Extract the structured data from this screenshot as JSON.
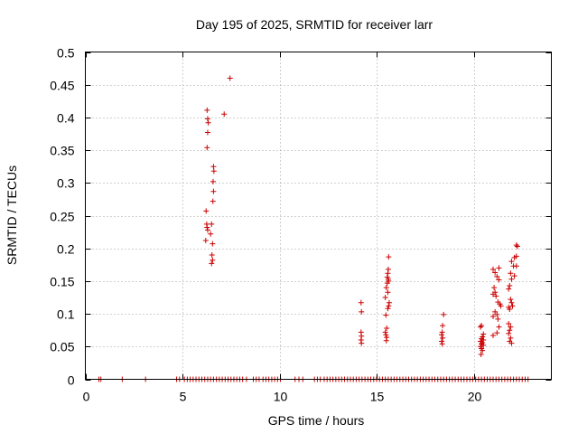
{
  "chart_data": {
    "type": "scatter",
    "title": "Day 195 of 2025, SRMTID for receiver larr",
    "xlabel": "GPS time / hours",
    "ylabel": "SRMTID / TECUs",
    "xlim": [
      0,
      24
    ],
    "ylim": [
      0,
      0.5
    ],
    "xticks": [
      0,
      5,
      10,
      15,
      20
    ],
    "xtick_labels": [
      "0",
      "5",
      "10",
      "15",
      "20"
    ],
    "yticks": [
      0,
      0.05,
      0.1,
      0.15,
      0.2,
      0.25,
      0.3,
      0.35,
      0.4,
      0.45,
      0.5
    ],
    "ytick_labels": [
      "0",
      "0.05",
      "0.1",
      "0.15",
      "0.2",
      "0.25",
      "0.3",
      "0.35",
      "0.4",
      "0.45",
      "0.5"
    ],
    "grid": true,
    "marker": "+",
    "color": "#cc0000",
    "series": [
      {
        "name": "SRMTID",
        "points": [
          [
            6.27,
            0.411
          ],
          [
            6.3,
            0.398
          ],
          [
            6.33,
            0.392
          ],
          [
            6.3,
            0.377
          ],
          [
            6.27,
            0.354
          ],
          [
            7.45,
            0.46
          ],
          [
            7.15,
            0.405
          ],
          [
            6.6,
            0.325
          ],
          [
            6.62,
            0.318
          ],
          [
            6.58,
            0.302
          ],
          [
            6.6,
            0.287
          ],
          [
            6.57,
            0.272
          ],
          [
            6.22,
            0.257
          ],
          [
            6.5,
            0.237
          ],
          [
            6.25,
            0.237
          ],
          [
            6.27,
            0.232
          ],
          [
            6.3,
            0.228
          ],
          [
            6.45,
            0.222
          ],
          [
            6.2,
            0.212
          ],
          [
            6.55,
            0.207
          ],
          [
            6.52,
            0.19
          ],
          [
            6.55,
            0.182
          ],
          [
            6.5,
            0.177
          ],
          [
            14.2,
            0.117
          ],
          [
            14.22,
            0.103
          ],
          [
            14.2,
            0.072
          ],
          [
            14.22,
            0.066
          ],
          [
            14.2,
            0.06
          ],
          [
            14.22,
            0.055
          ],
          [
            15.62,
            0.187
          ],
          [
            15.6,
            0.168
          ],
          [
            15.58,
            0.162
          ],
          [
            15.55,
            0.156
          ],
          [
            15.6,
            0.153
          ],
          [
            15.62,
            0.15
          ],
          [
            15.55,
            0.147
          ],
          [
            15.5,
            0.14
          ],
          [
            15.58,
            0.133
          ],
          [
            15.45,
            0.125
          ],
          [
            15.65,
            0.117
          ],
          [
            15.62,
            0.112
          ],
          [
            15.58,
            0.108
          ],
          [
            15.48,
            0.098
          ],
          [
            15.52,
            0.078
          ],
          [
            15.45,
            0.072
          ],
          [
            15.48,
            0.068
          ],
          [
            15.52,
            0.064
          ],
          [
            15.5,
            0.059
          ],
          [
            18.45,
            0.099
          ],
          [
            18.4,
            0.082
          ],
          [
            18.38,
            0.072
          ],
          [
            18.35,
            0.068
          ],
          [
            18.4,
            0.063
          ],
          [
            18.35,
            0.058
          ],
          [
            18.38,
            0.054
          ],
          [
            20.4,
            0.082
          ],
          [
            20.35,
            0.08
          ],
          [
            20.5,
            0.069
          ],
          [
            20.45,
            0.065
          ],
          [
            20.4,
            0.062
          ],
          [
            20.5,
            0.06
          ],
          [
            20.35,
            0.058
          ],
          [
            20.45,
            0.056
          ],
          [
            20.4,
            0.054
          ],
          [
            20.5,
            0.052
          ],
          [
            20.35,
            0.05
          ],
          [
            20.4,
            0.047
          ],
          [
            20.45,
            0.044
          ],
          [
            20.38,
            0.038
          ],
          [
            21.0,
            0.168
          ],
          [
            21.3,
            0.17
          ],
          [
            21.1,
            0.163
          ],
          [
            21.2,
            0.157
          ],
          [
            21.3,
            0.152
          ],
          [
            21.05,
            0.14
          ],
          [
            21.1,
            0.133
          ],
          [
            21.0,
            0.13
          ],
          [
            21.15,
            0.127
          ],
          [
            21.25,
            0.118
          ],
          [
            21.35,
            0.115
          ],
          [
            21.4,
            0.112
          ],
          [
            21.1,
            0.103
          ],
          [
            21.2,
            0.099
          ],
          [
            21.0,
            0.096
          ],
          [
            21.25,
            0.092
          ],
          [
            21.3,
            0.08
          ],
          [
            21.2,
            0.071
          ],
          [
            21.0,
            0.067
          ],
          [
            22.2,
            0.205
          ],
          [
            22.25,
            0.203
          ],
          [
            22.2,
            0.188
          ],
          [
            22.1,
            0.186
          ],
          [
            21.95,
            0.18
          ],
          [
            22.05,
            0.173
          ],
          [
            22.2,
            0.173
          ],
          [
            21.9,
            0.162
          ],
          [
            22.1,
            0.158
          ],
          [
            21.95,
            0.153
          ],
          [
            21.85,
            0.143
          ],
          [
            21.8,
            0.138
          ],
          [
            21.9,
            0.122
          ],
          [
            21.95,
            0.117
          ],
          [
            22.0,
            0.112
          ],
          [
            21.8,
            0.11
          ],
          [
            21.85,
            0.107
          ],
          [
            21.8,
            0.085
          ],
          [
            21.9,
            0.08
          ],
          [
            21.85,
            0.075
          ],
          [
            21.8,
            0.07
          ],
          [
            21.9,
            0.063
          ],
          [
            21.85,
            0.058
          ],
          [
            21.95,
            0.055
          ]
        ],
        "zero_valued_x": [
          0.7,
          0.8,
          1.9,
          3.1,
          4.7,
          4.85,
          5.1,
          5.25,
          5.4,
          5.55,
          5.7,
          5.85,
          6.0,
          6.15,
          6.3,
          6.45,
          6.6,
          6.75,
          6.9,
          7.05,
          7.2,
          7.35,
          7.5,
          7.65,
          7.8,
          7.95,
          8.1,
          8.3,
          8.65,
          8.8,
          8.95,
          9.15,
          9.3,
          9.45,
          9.6,
          9.75,
          9.9,
          10.05,
          10.8,
          11.0,
          11.2,
          11.8,
          11.95,
          12.1,
          12.3,
          12.45,
          12.6,
          12.75,
          12.9,
          13.05,
          13.2,
          13.35,
          13.5,
          13.65,
          13.8,
          13.95,
          14.1,
          14.25,
          14.4,
          14.55,
          14.7,
          14.85,
          15.0,
          15.15,
          15.3,
          15.45,
          15.6,
          15.75,
          15.9,
          16.05,
          16.2,
          16.35,
          16.5,
          16.65,
          16.8,
          16.95,
          17.1,
          17.25,
          17.4,
          17.55,
          17.7,
          17.85,
          18.0,
          18.15,
          18.3,
          18.45,
          18.6,
          18.75,
          18.9,
          19.05,
          19.2,
          19.35,
          19.5,
          19.65,
          19.8,
          19.95,
          20.1,
          20.25,
          20.4,
          20.55,
          20.7,
          20.85,
          21.0,
          21.15,
          21.3,
          21.45,
          21.6,
          21.75,
          21.9,
          22.05,
          22.2,
          22.35,
          22.5,
          22.65,
          22.8
        ]
      }
    ]
  }
}
